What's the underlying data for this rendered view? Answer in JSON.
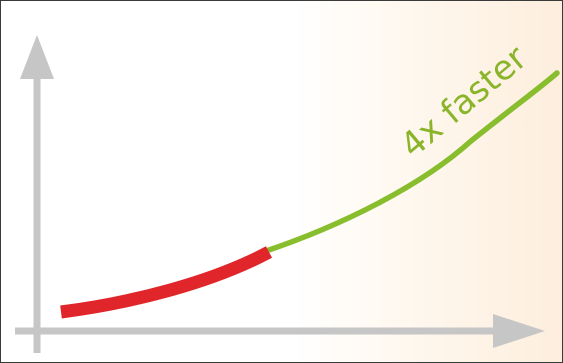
{
  "annotation": {
    "text": "4x faster"
  },
  "colors": {
    "axes": "#c6c6c6",
    "slow_segment": "#e0262b",
    "fast_segment": "#88bd2d",
    "label": "#8ab52a",
    "background_right": "#fdeedd"
  },
  "segments": [
    "slow",
    "fast"
  ]
}
